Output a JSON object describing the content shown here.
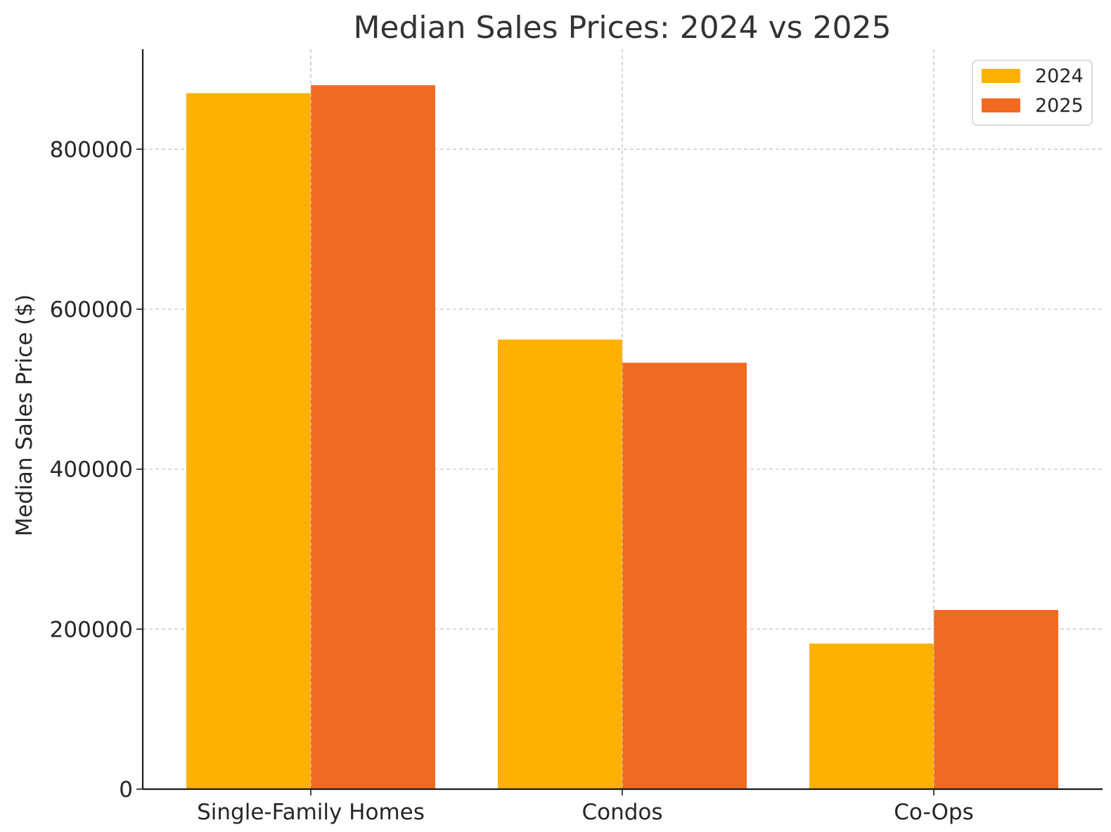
{
  "chart_data": {
    "type": "bar",
    "title": "Median Sales Prices: 2024 vs 2025",
    "xlabel": "",
    "ylabel": "Median Sales Price ($)",
    "categories": [
      "Single-Family Homes",
      "Condos",
      "Co-Ops"
    ],
    "series": [
      {
        "name": "2024",
        "color": "#FFB000",
        "values": [
          870000,
          562000,
          182000
        ]
      },
      {
        "name": "2025",
        "color": "#F26A22",
        "values": [
          880000,
          533000,
          224000
        ]
      }
    ],
    "ylim": [
      0,
      925000
    ],
    "yticks": [
      0,
      200000,
      400000,
      600000,
      800000
    ],
    "ytick_labels": [
      "0",
      "200000",
      "400000",
      "600000",
      "800000"
    ],
    "grid": true,
    "legend_position": "top-right",
    "colors": {
      "axis": "#1a1a1a",
      "grid": "#c8c8c8",
      "text": "#262626",
      "title": "#333333"
    }
  }
}
